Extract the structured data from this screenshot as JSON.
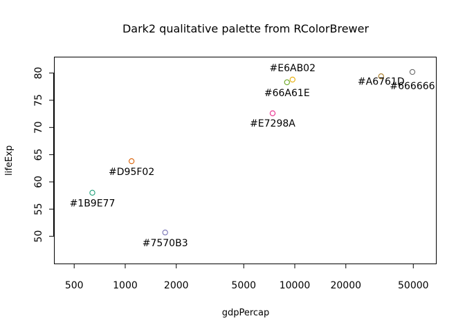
{
  "chart_data": {
    "type": "scatter",
    "title": "Dark2 qualitative palette from RColorBrewer",
    "xlabel": "gdpPercap",
    "ylabel": "lifeExp",
    "x_scale": "log",
    "xlim": [
      380,
      68000
    ],
    "ylim": [
      45,
      83
    ],
    "x_ticks": [
      500,
      1000,
      2000,
      5000,
      10000,
      20000,
      50000
    ],
    "x_tick_labels": [
      "500",
      "1000",
      "2000",
      "5000",
      "10000",
      "20000",
      "50000"
    ],
    "y_ticks": [
      50,
      55,
      60,
      65,
      70,
      75,
      80
    ],
    "y_tick_labels": [
      "50",
      "55",
      "60",
      "65",
      "70",
      "75",
      "80"
    ],
    "grid": false,
    "points": [
      {
        "x": 640,
        "y": 58.0,
        "color": "#1B9E77",
        "label": "#1B9E77"
      },
      {
        "x": 1090,
        "y": 63.8,
        "color": "#D95F02",
        "label": "#D95F02"
      },
      {
        "x": 1720,
        "y": 50.7,
        "color": "#7570B3",
        "label": "#7570B3"
      },
      {
        "x": 7400,
        "y": 72.6,
        "color": "#E7298A",
        "label": "#E7298A"
      },
      {
        "x": 9000,
        "y": 78.3,
        "color": "#66A61E",
        "label": "#66A61E"
      },
      {
        "x": 9700,
        "y": 78.8,
        "color": "#E6AB02",
        "label": "#E6AB02"
      },
      {
        "x": 32300,
        "y": 79.4,
        "color": "#A6761D",
        "label": "#A6761D"
      },
      {
        "x": 49400,
        "y": 80.2,
        "color": "#666666",
        "label": "#666666"
      }
    ]
  }
}
